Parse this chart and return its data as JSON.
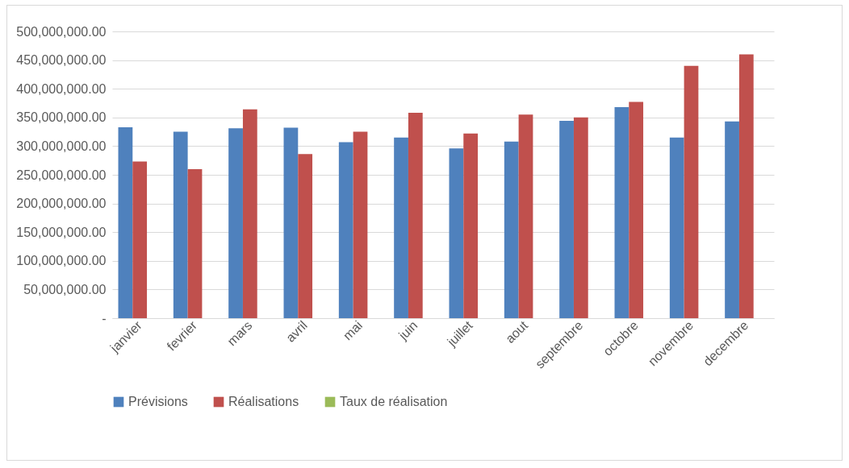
{
  "chart_data": {
    "type": "bar",
    "categories": [
      "janvier",
      "fevrier",
      "mars",
      "avril",
      "mai",
      "juin",
      "juillet",
      "aout",
      "septembre",
      "octobre",
      "novembre",
      "decembre"
    ],
    "series": [
      {
        "name": "Prévisions",
        "color": "#4f81bd",
        "values": [
          333000000,
          325000000,
          331000000,
          332000000,
          307000000,
          315000000,
          296000000,
          308000000,
          344000000,
          368000000,
          315000000,
          343000000
        ]
      },
      {
        "name": "Réalisations",
        "color": "#c0504d",
        "values": [
          273000000,
          260000000,
          364000000,
          286000000,
          325000000,
          358000000,
          322000000,
          355000000,
          350000000,
          377000000,
          440000000,
          460000000
        ]
      },
      {
        "name": "Taux de réalisation",
        "color": "#9bbb59",
        "values": [
          null,
          null,
          null,
          null,
          null,
          null,
          null,
          null,
          null,
          null,
          null,
          null
        ]
      }
    ],
    "ylim": [
      0,
      500000000
    ],
    "yticks": [
      {
        "value": 0,
        "label": "-"
      },
      {
        "value": 50000000,
        "label": "50,000,000.00"
      },
      {
        "value": 100000000,
        "label": "100,000,000.00"
      },
      {
        "value": 150000000,
        "label": "150,000,000.00"
      },
      {
        "value": 200000000,
        "label": "200,000,000.00"
      },
      {
        "value": 250000000,
        "label": "250,000,000.00"
      },
      {
        "value": 300000000,
        "label": "300,000,000.00"
      },
      {
        "value": 350000000,
        "label": "350,000,000.00"
      },
      {
        "value": 400000000,
        "label": "400,000,000.00"
      },
      {
        "value": 450000000,
        "label": "450,000,000.00"
      },
      {
        "value": 500000000,
        "label": "500,000,000.00"
      }
    ],
    "grid": "y",
    "legend": "bottom"
  }
}
